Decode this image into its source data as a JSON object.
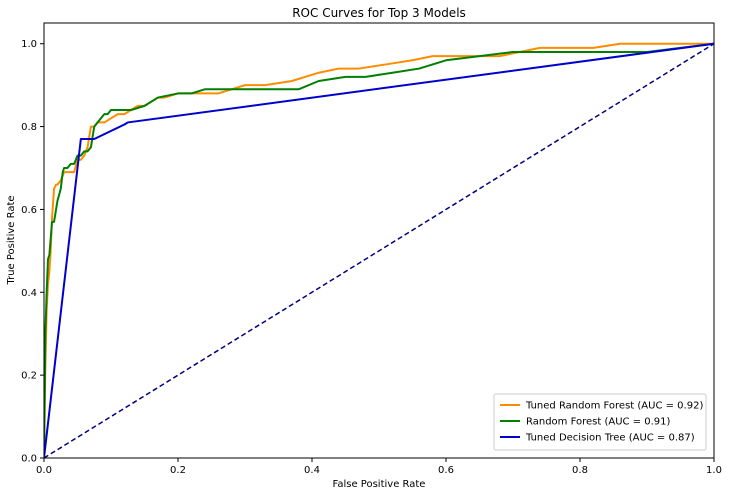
{
  "chart_data": {
    "type": "line",
    "title": "ROC Curves for Top 3 Models",
    "xlabel": "False Positive Rate",
    "ylabel": "True Positive Rate",
    "xlim": [
      0.0,
      1.0
    ],
    "ylim": [
      0.0,
      1.05
    ],
    "x_ticks": [
      "0.0",
      "0.2",
      "0.4",
      "0.6",
      "0.8",
      "1.0"
    ],
    "y_ticks": [
      "0.0",
      "0.2",
      "0.4",
      "0.6",
      "0.8",
      "1.0"
    ],
    "grid": false,
    "legend_position": "lower-right",
    "series": [
      {
        "name": "Tuned Random Forest (AUC = 0.92)",
        "color": "#ff8c00",
        "x": [
          0.0,
          0.002,
          0.004,
          0.006,
          0.008,
          0.01,
          0.012,
          0.015,
          0.018,
          0.02,
          0.025,
          0.03,
          0.035,
          0.04,
          0.045,
          0.05,
          0.055,
          0.06,
          0.065,
          0.07,
          0.075,
          0.08,
          0.09,
          0.1,
          0.11,
          0.12,
          0.13,
          0.14,
          0.15,
          0.16,
          0.17,
          0.18,
          0.2,
          0.22,
          0.26,
          0.28,
          0.3,
          0.33,
          0.37,
          0.41,
          0.44,
          0.47,
          0.51,
          0.55,
          0.58,
          0.61,
          0.65,
          0.68,
          0.71,
          0.74,
          0.78,
          0.82,
          0.86,
          0.9,
          0.95,
          1.0
        ],
        "y": [
          0.0,
          0.22,
          0.36,
          0.42,
          0.45,
          0.5,
          0.58,
          0.65,
          0.66,
          0.66,
          0.67,
          0.69,
          0.69,
          0.69,
          0.69,
          0.72,
          0.72,
          0.73,
          0.75,
          0.8,
          0.8,
          0.81,
          0.81,
          0.82,
          0.83,
          0.83,
          0.84,
          0.85,
          0.85,
          0.86,
          0.87,
          0.87,
          0.88,
          0.88,
          0.88,
          0.89,
          0.9,
          0.9,
          0.91,
          0.93,
          0.94,
          0.94,
          0.95,
          0.96,
          0.97,
          0.97,
          0.97,
          0.97,
          0.98,
          0.99,
          0.99,
          0.99,
          1.0,
          1.0,
          1.0,
          1.0
        ]
      },
      {
        "name": "Random Forest (AUC = 0.91)",
        "color": "#008000",
        "x": [
          0.0,
          0.002,
          0.004,
          0.006,
          0.008,
          0.01,
          0.012,
          0.015,
          0.018,
          0.02,
          0.025,
          0.028,
          0.03,
          0.035,
          0.04,
          0.045,
          0.05,
          0.055,
          0.06,
          0.065,
          0.07,
          0.075,
          0.08,
          0.085,
          0.09,
          0.095,
          0.1,
          0.11,
          0.13,
          0.15,
          0.17,
          0.2,
          0.22,
          0.24,
          0.27,
          0.3,
          0.34,
          0.38,
          0.41,
          0.45,
          0.48,
          0.52,
          0.56,
          0.6,
          0.65,
          0.7,
          0.75,
          0.8,
          0.85,
          0.9,
          0.95,
          1.0
        ],
        "y": [
          0.0,
          0.3,
          0.4,
          0.48,
          0.49,
          0.53,
          0.57,
          0.57,
          0.6,
          0.62,
          0.65,
          0.69,
          0.7,
          0.7,
          0.71,
          0.71,
          0.73,
          0.73,
          0.74,
          0.74,
          0.75,
          0.8,
          0.81,
          0.82,
          0.83,
          0.83,
          0.84,
          0.84,
          0.84,
          0.85,
          0.87,
          0.88,
          0.88,
          0.89,
          0.89,
          0.89,
          0.89,
          0.89,
          0.91,
          0.92,
          0.92,
          0.93,
          0.94,
          0.96,
          0.97,
          0.98,
          0.98,
          0.98,
          0.98,
          0.98,
          0.99,
          1.0
        ]
      },
      {
        "name": "Tuned Decision Tree (AUC = 0.87)",
        "color": "#0000cd",
        "x": [
          0.0,
          0.055,
          0.075,
          0.12,
          0.125,
          1.0
        ],
        "y": [
          0.0,
          0.77,
          0.77,
          0.805,
          0.81,
          1.0
        ]
      }
    ],
    "reference_line": {
      "x": [
        0.0,
        1.0
      ],
      "y": [
        0.0,
        1.0
      ],
      "color": "#000080",
      "style": "dashed"
    }
  }
}
